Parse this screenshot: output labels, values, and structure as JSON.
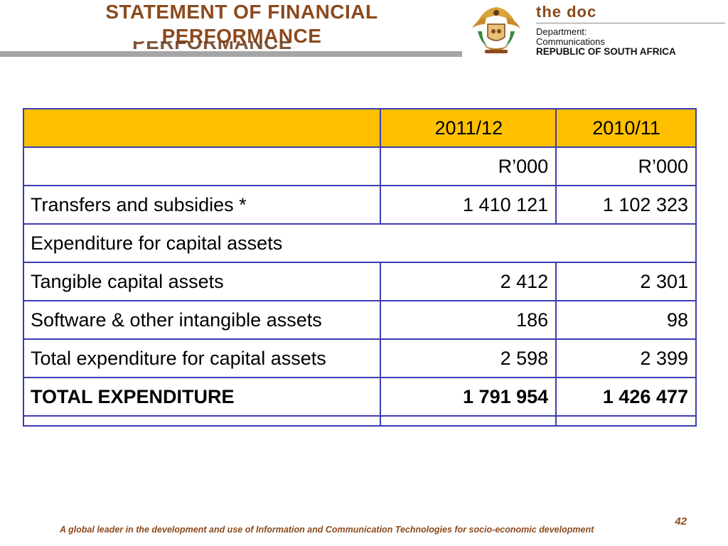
{
  "header": {
    "title_line1": "STATEMENT OF FINANCIAL",
    "title_line2": "PERFORMANCE",
    "brand": "the doc",
    "department_line1": "Department:",
    "department_line2": "Communications",
    "department_line3": "REPUBLIC OF SOUTH AFRICA",
    "coat_icon": "coat-of-arms-icon",
    "accent_color": "#8b4a1c"
  },
  "table": {
    "header_fill": "#ffc000",
    "border_color": "#3c3cb4",
    "columns": [
      "",
      "2011/12",
      "2010/11"
    ],
    "rows": [
      {
        "label": "",
        "v1": "R’000",
        "v2": "R’000",
        "bold": false
      },
      {
        "label": "Transfers and subsidies *",
        "v1": "1 410 121",
        "v2": "1 102 323",
        "bold": false
      },
      {
        "label": "Expenditure for capital assets",
        "v1": null,
        "v2": null,
        "bold": false,
        "merged": true
      },
      {
        "label": "Tangible capital assets",
        "v1": "2 412",
        "v2": "2 301",
        "bold": false
      },
      {
        "label": "Software & other intangible assets",
        "v1": "186",
        "v2": "98",
        "bold": false
      },
      {
        "label": "Total expenditure for capital assets",
        "v1": "2 598",
        "v2": "2 399",
        "bold": false
      },
      {
        "label": "TOTAL EXPENDITURE",
        "v1": "1 791 954",
        "v2": "1 426 477",
        "bold": true
      },
      {
        "label": "",
        "v1": "",
        "v2": "",
        "bold": false
      }
    ]
  },
  "footer": {
    "page_number": "42",
    "tagline": "A global leader in the development and use of Information and Communication Technologies for socio-economic development"
  }
}
